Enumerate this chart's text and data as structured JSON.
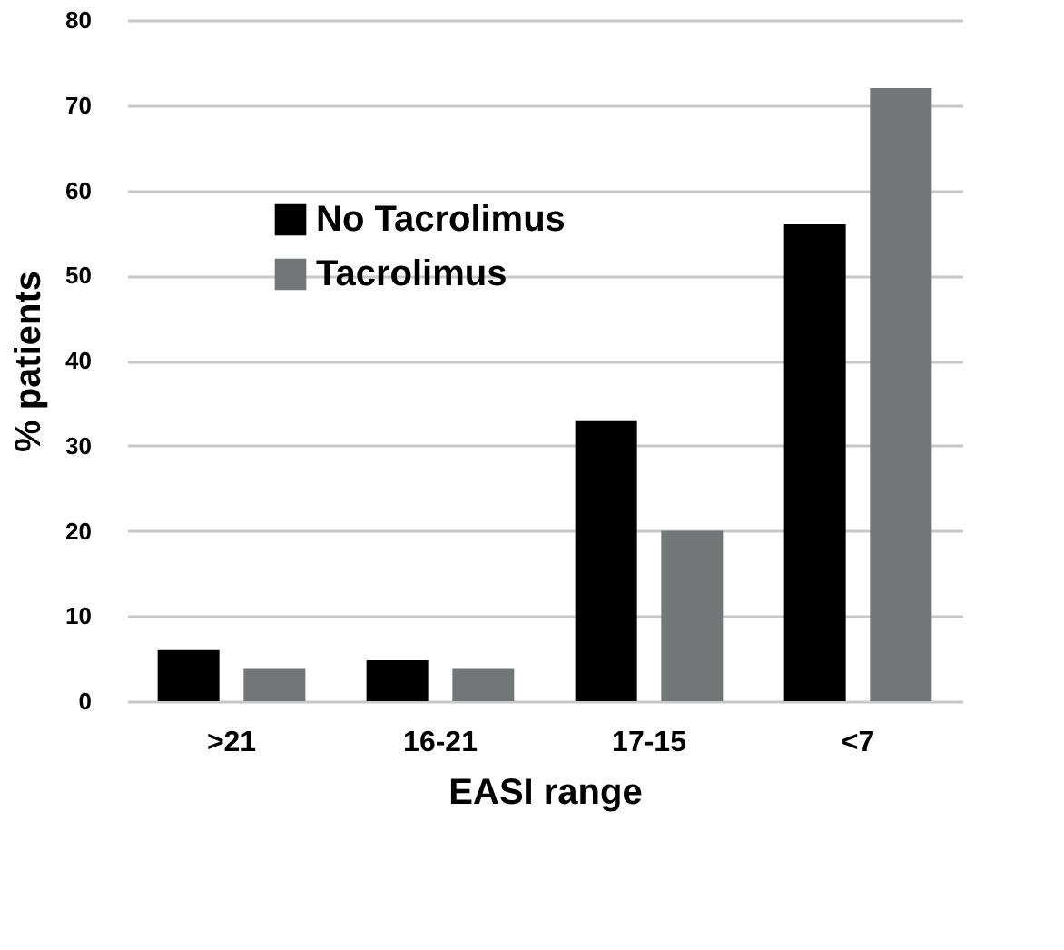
{
  "chart_data": {
    "type": "bar",
    "xlabel": "EASI range",
    "ylabel": "% patients",
    "categories": [
      ">21",
      "16-21",
      "17-15",
      "<7"
    ],
    "series": [
      {
        "name": "No Tacrolimus",
        "color": "#000000",
        "values": [
          6,
          4.8,
          33,
          56
        ]
      },
      {
        "name": "Tacrolimus",
        "color": "#737677",
        "values": [
          3.8,
          3.8,
          20,
          72
        ]
      }
    ],
    "ylim": [
      0,
      80
    ],
    "yticks": [
      0,
      10,
      20,
      30,
      40,
      50,
      60,
      70,
      80
    ],
    "grid": "y",
    "legend": "top left"
  }
}
